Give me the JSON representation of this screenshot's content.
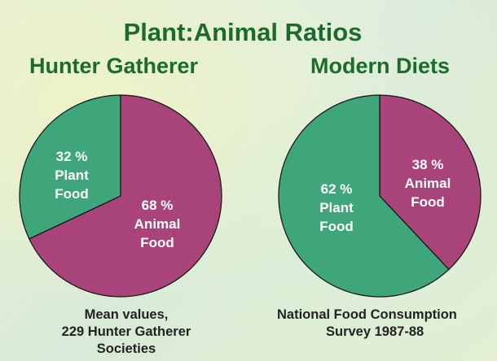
{
  "title": "Plant:Animal Ratios",
  "colors": {
    "plant": "#3fa57a",
    "animal": "#a8447a",
    "heading": "#1a6b2c",
    "outline": "#111111"
  },
  "chart_data": [
    {
      "type": "pie",
      "title": "Hunter Gatherer",
      "slices": [
        {
          "name": "Animal Food",
          "value": 68,
          "label": [
            "68 %",
            "Animal",
            "Food"
          ]
        },
        {
          "name": "Plant Food",
          "value": 32,
          "label": [
            "32 %",
            "Plant",
            "Food"
          ]
        }
      ],
      "caption": [
        "Mean values,",
        "229 Hunter Gatherer",
        "Societies"
      ]
    },
    {
      "type": "pie",
      "title": "Modern Diets",
      "slices": [
        {
          "name": "Animal Food",
          "value": 38,
          "label": [
            "38 %",
            "Animal",
            "Food"
          ]
        },
        {
          "name": "Plant Food",
          "value": 62,
          "label": [
            "62 %",
            "Plant",
            "Food"
          ]
        }
      ],
      "caption": [
        "National Food Consumption",
        "Survey  1987-88"
      ]
    }
  ]
}
